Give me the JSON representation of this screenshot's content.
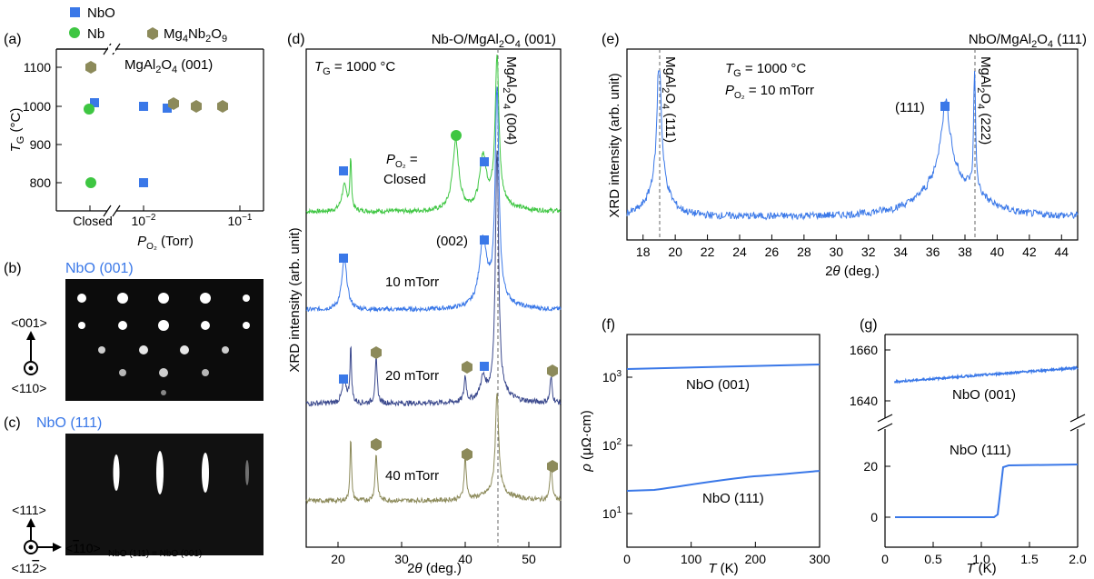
{
  "colors": {
    "nbo": "#3a78e8",
    "nb": "#3ec642",
    "mg": "#8c8a5a",
    "green_trace": "#3ec642",
    "blue_trace": "#3a78e8",
    "navy_trace": "#3c4a8e",
    "olive_trace": "#8c8a5a"
  },
  "panel_a": {
    "label": "(a)",
    "legend": [
      "NbO",
      "Nb",
      "Mg4Nb2O9"
    ],
    "annotation": "MgAl2O4 (001)",
    "ylabel": "TG (°C)",
    "xlabel": "PO2 (Torr)",
    "yticks": [
      "800",
      "900",
      "1000",
      "1100"
    ],
    "xticks": [
      "Closed",
      "10^-2",
      "10^-1"
    ]
  },
  "panel_b": {
    "label": "(b)",
    "title": "NbO (001)",
    "dir_up": "<001>",
    "dir_dot": "<110>"
  },
  "panel_c": {
    "label": "(c)",
    "title": "NbO (111)",
    "dir_up": "<111>",
    "dir_right": "<-110>",
    "dir_right_sub": "NbO (111) = NbO (001)",
    "dir_dot": "<11-2>"
  },
  "panel_d": {
    "label": "(d)",
    "title": "Nb-O/MgAl2O4 (001)",
    "temp": "TG = 1000 °C",
    "ylabel": "XRD intensity (arb. unit)",
    "xlabel": "2θ (deg.)",
    "xticks": [
      "20",
      "30",
      "40",
      "50"
    ],
    "substrate_label": "MgAl2O4 (004)",
    "peak_label": "(002)",
    "trace_labels": [
      "PO2 = Closed",
      "10 mTorr",
      "20 mTorr",
      "40 mTorr"
    ]
  },
  "panel_e": {
    "label": "(e)",
    "title": "NbO/MgAl2O4 (111)",
    "temp": "TG = 1000 °C",
    "pressure": "PO2 = 10 mTorr",
    "ylabel": "XRD intensity (arb. unit)",
    "xlabel": "2θ (deg.)",
    "xticks": [
      "18",
      "20",
      "22",
      "24",
      "26",
      "28",
      "30",
      "32",
      "34",
      "36",
      "38",
      "40",
      "42",
      "44"
    ],
    "sub1": "MgAl2O4 (111)",
    "sub2": "MgAl2O4 (222)",
    "peak": "(111)"
  },
  "panel_f": {
    "label": "(f)",
    "ylabel": "ρ (μΩ·cm)",
    "xlabel": "T (K)",
    "xticks": [
      "0",
      "100",
      "200",
      "300"
    ],
    "yticks": [
      "10^1",
      "10^2",
      "10^3"
    ],
    "curve1": "NbO (001)",
    "curve2": "NbO (111)"
  },
  "panel_g": {
    "label": "(g)",
    "ylabel": "",
    "xlabel": "T (K)",
    "xticks": [
      "0",
      "0.5",
      "1.0",
      "1.5",
      "2.0"
    ],
    "yticks_top": [
      "1640",
      "1660"
    ],
    "yticks_bot": [
      "0",
      "20"
    ],
    "curve1": "NbO (001)",
    "curve2": "NbO (111)"
  },
  "chart_data": [
    {
      "type": "scatter",
      "panel": "a",
      "xlabel": "PO2 (Torr)",
      "ylabel": "TG (°C)",
      "ylim": [
        760,
        1130
      ],
      "series": [
        {
          "name": "NbO",
          "points": [
            [
              "Closed",
              1008
            ],
            [
              0.01,
              1000
            ],
            [
              0.01,
              800
            ],
            [
              0.018,
              995
            ]
          ]
        },
        {
          "name": "Nb",
          "points": [
            [
              "Closed",
              995
            ],
            [
              "Closed",
              800
            ]
          ]
        },
        {
          "name": "Mg4Nb2O9",
          "points": [
            [
              "Closed",
              1095
            ],
            [
              0.02,
              1008
            ],
            [
              0.035,
              1000
            ],
            [
              0.075,
              1000
            ]
          ]
        }
      ]
    },
    {
      "type": "line",
      "panel": "d",
      "xlabel": "2θ (deg.)",
      "ylabel": "XRD intensity (arb. unit)",
      "xlim": [
        15,
        55
      ],
      "series": [
        {
          "name": "PO2 = Closed",
          "peaks": [
            21,
            22,
            38.5,
            42.8,
            45
          ]
        },
        {
          "name": "10 mTorr",
          "peaks": [
            21,
            42.8,
            45
          ]
        },
        {
          "name": "20 mTorr",
          "peaks": [
            21,
            22,
            26,
            40,
            42.8,
            45,
            53.5
          ]
        },
        {
          "name": "40 mTorr",
          "peaks": [
            22,
            26,
            40,
            45,
            53.5
          ]
        }
      ]
    },
    {
      "type": "line",
      "panel": "e",
      "xlabel": "2θ (deg.)",
      "ylabel": "XRD intensity (arb. unit)",
      "xlim": [
        17,
        45
      ],
      "series": [
        {
          "name": "NbO/MgAl2O4 (111)",
          "peaks": [
            19.0,
            36.8,
            38.6
          ]
        }
      ]
    },
    {
      "type": "line",
      "panel": "f",
      "xlabel": "T (K)",
      "ylabel": "ρ (μΩ·cm)",
      "xlim": [
        0,
        300
      ],
      "yscale": "log",
      "series": [
        {
          "name": "NbO (001)",
          "x": [
            0,
            100,
            200,
            300
          ],
          "y": [
            1650,
            1700,
            1760,
            1830
          ]
        },
        {
          "name": "NbO (111)",
          "x": [
            0,
            40,
            100,
            200,
            300
          ],
          "y": [
            21,
            21.5,
            28,
            36,
            45
          ]
        }
      ]
    },
    {
      "type": "line",
      "panel": "g",
      "xlabel": "T (K)",
      "xlim": [
        0,
        2
      ],
      "series": [
        {
          "name": "NbO (001)",
          "x": [
            0.1,
            1.0,
            2.0
          ],
          "y": [
            1647.5,
            1649.5,
            1653
          ]
        },
        {
          "name": "NbO (111)",
          "x": [
            0.1,
            1.1,
            1.15,
            1.2,
            2.0
          ],
          "y": [
            0,
            0,
            3,
            20,
            20.5
          ]
        }
      ]
    }
  ]
}
